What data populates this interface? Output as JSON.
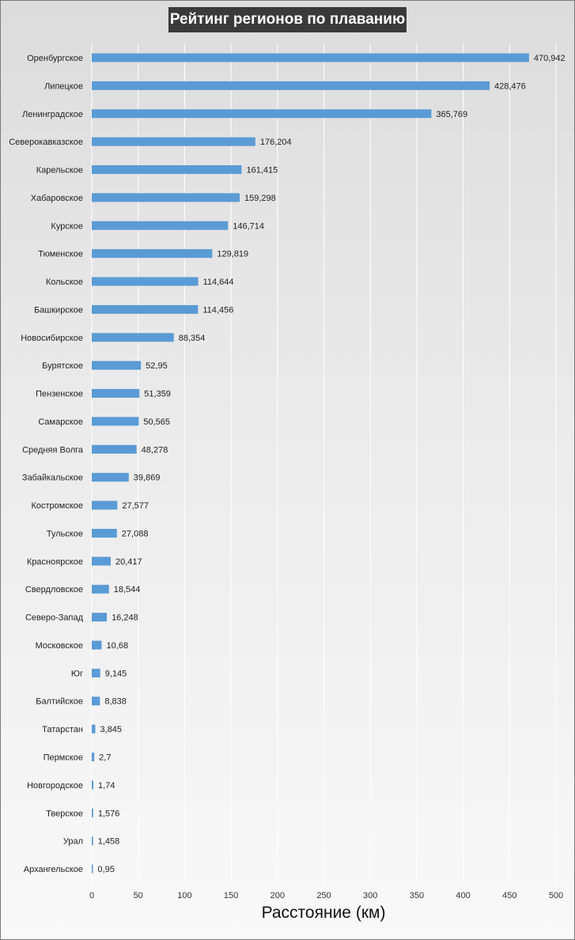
{
  "chart_data": {
    "type": "bar",
    "orientation": "horizontal",
    "title": "Рейтинг регионов по плаванию",
    "xlabel": "Расстояние (км)",
    "ylabel": "",
    "xlim": [
      0,
      500
    ],
    "x_ticks": [
      "0",
      "50",
      "100",
      "150",
      "200",
      "250",
      "300",
      "350",
      "400",
      "450",
      "500"
    ],
    "grid": "vertical",
    "bar_color": "#5B9BD5",
    "categories": [
      "Оренбургское",
      "Липецкое",
      "Ленинградское",
      "Северокавказское",
      "Карельское",
      "Хабаровское",
      "Курское",
      "Тюменское",
      "Кольское",
      "Башкирское",
      "Новосибирское",
      "Бурятское",
      "Пензенское",
      "Самарское",
      "Средняя Волга",
      "Забайкальское",
      "Костромское",
      "Тульское",
      "Красноярское",
      "Свердловское",
      "Северо-Запад",
      "Московское",
      "Юг",
      "Балтийское",
      "Татарстан",
      "Пермское",
      "Новгородское",
      "Тверское",
      "Урал",
      "Архангельское"
    ],
    "values": [
      470.942,
      428.476,
      365.769,
      176.204,
      161.415,
      159.298,
      146.714,
      129.819,
      114.644,
      114.456,
      88.354,
      52.95,
      51.359,
      50.565,
      48.278,
      39.869,
      27.577,
      27.088,
      20.417,
      18.544,
      16.248,
      10.68,
      9.145,
      8.838,
      3.845,
      2.7,
      1.74,
      1.576,
      1.458,
      0.95
    ],
    "value_labels": [
      "470,942",
      "428,476",
      "365,769",
      "176,204",
      "161,415",
      "159,298",
      "146,714",
      "129,819",
      "114,644",
      "114,456",
      "88,354",
      "52,95",
      "51,359",
      "50,565",
      "48,278",
      "39,869",
      "27,577",
      "27,088",
      "20,417",
      "18,544",
      "16,248",
      "10,68",
      "9,145",
      "8,838",
      "3,845",
      "2,7",
      "1,74",
      "1,576",
      "1,458",
      "0,95"
    ]
  }
}
